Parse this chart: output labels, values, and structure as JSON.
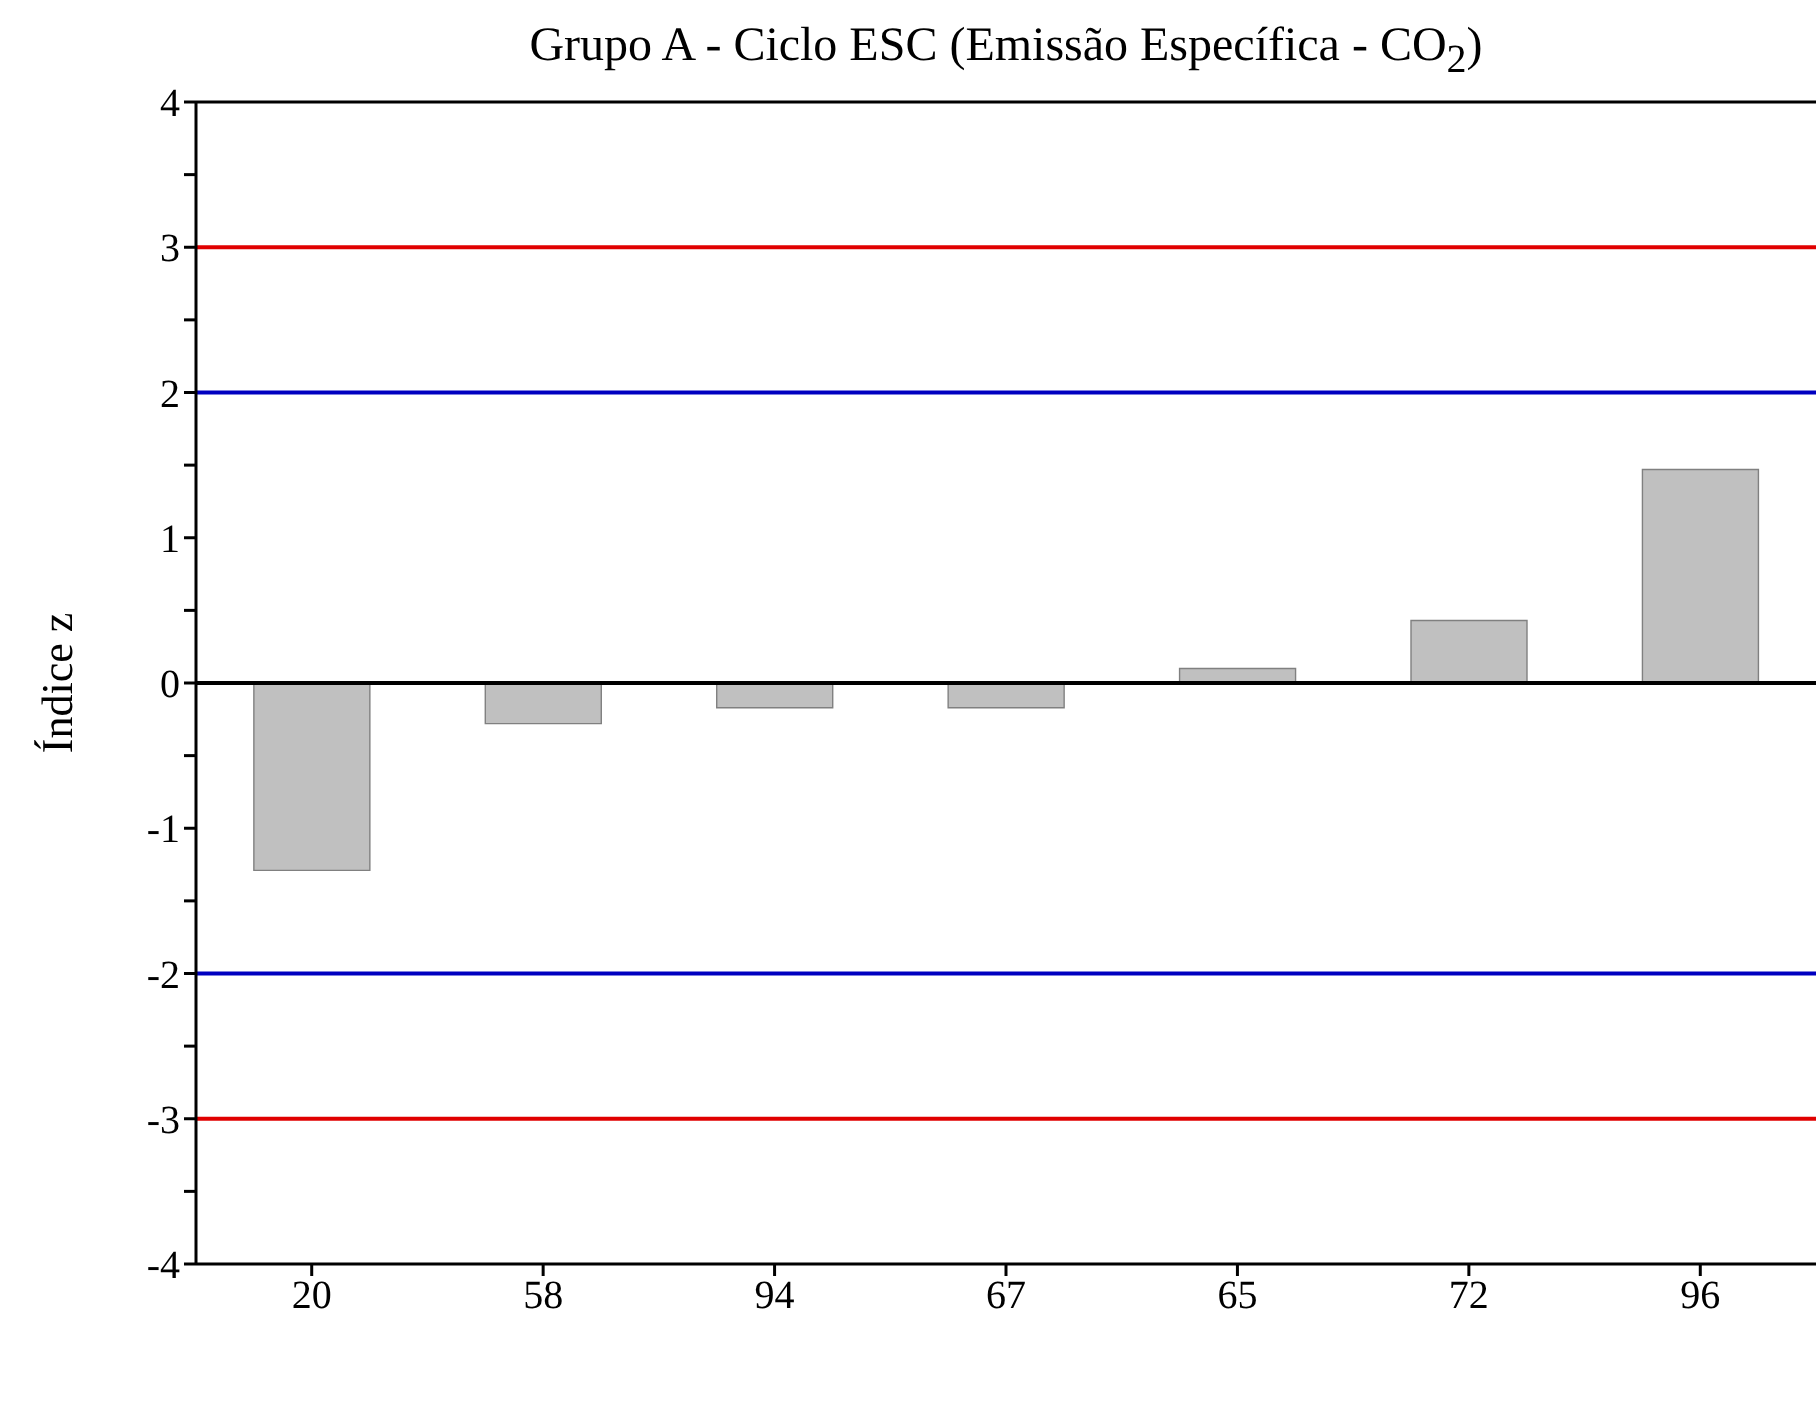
{
  "chart_data": {
    "type": "bar",
    "title": "Grupo A - Ciclo ESC (Emissão Específica - CO$_{2}$)",
    "ylabel": "Índice z",
    "categories": [
      "20",
      "58",
      "94",
      "67",
      "65",
      "72",
      "96"
    ],
    "values": [
      -1.29,
      -0.28,
      -0.17,
      -0.17,
      0.1,
      0.43,
      1.47
    ],
    "color": "#c0c0c0",
    "ylim": [
      -4,
      4
    ],
    "yticks": [
      -4,
      {
        "value": -3.5,
        "label": null
      },
      -3,
      {
        "value": -2.5,
        "label": null
      },
      -2,
      {
        "value": -1.5,
        "label": null
      },
      -1,
      {
        "value": -0.5,
        "label": null
      },
      0,
      {
        "value": 0.5,
        "label": null
      },
      1,
      {
        "value": 1.5,
        "label": null
      },
      2,
      {
        "value": 2.5,
        "label": null
      },
      3,
      {
        "value": 3.5,
        "label": null
      },
      4
    ],
    "ref_lines": [
      {
        "axis": "y",
        "value": 3,
        "color": "#e00000"
      },
      {
        "axis": "y",
        "value": 2,
        "color": "#0000c0"
      },
      {
        "axis": "y",
        "value": 0,
        "color": "#000000"
      },
      {
        "axis": "y",
        "value": -2,
        "color": "#0000c0"
      },
      {
        "axis": "y",
        "value": -3,
        "color": "#e00000"
      }
    ],
    "grid": false,
    "legend": false
  }
}
